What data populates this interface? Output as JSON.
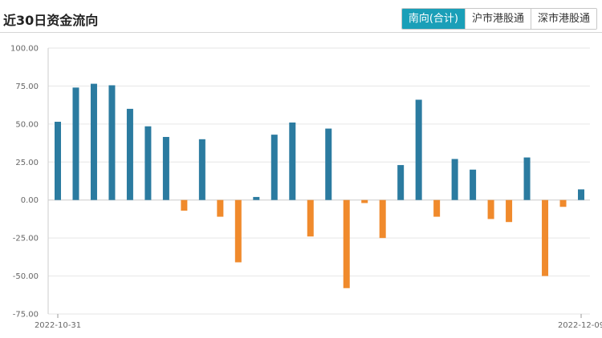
{
  "header": {
    "title": "近30日资金流向",
    "tabs": [
      {
        "label": "南向(合计)",
        "active": true
      },
      {
        "label": "沪市港股通",
        "active": false
      },
      {
        "label": "深市港股通",
        "active": false
      }
    ]
  },
  "colors": {
    "positive": "#2b7ba0",
    "negative": "#f08a2c",
    "tab_active": "#1a9fb8"
  },
  "chart_data": {
    "type": "bar",
    "ylim": [
      -75,
      100
    ],
    "yticks": [
      "100.00",
      "75.00",
      "50.00",
      "25.00",
      "0.00",
      "-25.00",
      "-50.00",
      "-75.00"
    ],
    "ytick_values": [
      100,
      75,
      50,
      25,
      0,
      -25,
      -50,
      -75
    ],
    "x_start_label": "2022-10-31",
    "x_end_label": "2022-12-09",
    "values": [
      51.5,
      74,
      76.5,
      75.5,
      60,
      48.5,
      41.5,
      -7,
      40,
      -11,
      -41,
      2,
      43,
      51,
      -24,
      47,
      -58,
      -2,
      -25,
      23,
      66,
      -11,
      27,
      20,
      -12.5,
      -14.5,
      28,
      -50,
      -4.5,
      7
    ],
    "grid": true
  }
}
